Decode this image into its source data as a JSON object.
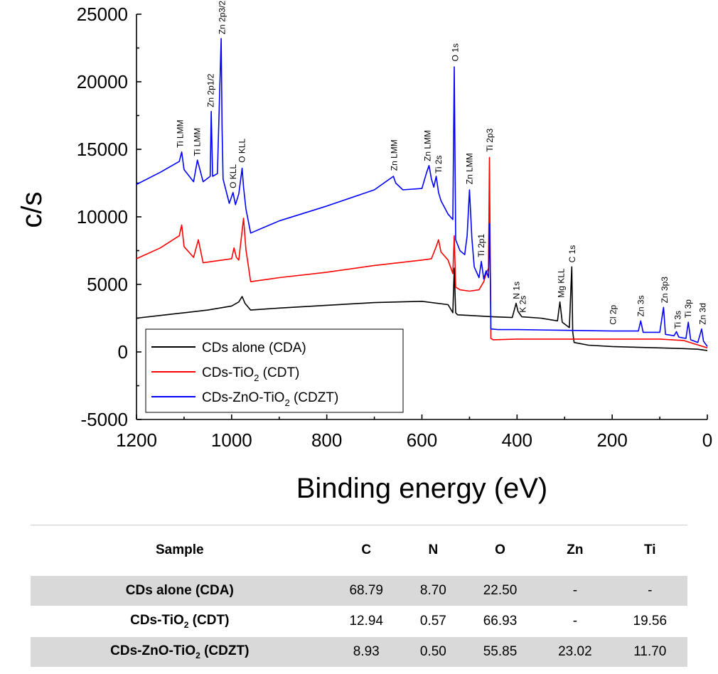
{
  "chart_data": {
    "type": "line",
    "title": "",
    "xlabel": "Binding energy (eV)",
    "ylabel": "c/s",
    "xlim": [
      1200,
      0
    ],
    "ylim": [
      -5000,
      25000
    ],
    "x_reversed": true,
    "grid": false,
    "legend_position": "bottom-left",
    "x_ticks": [
      "1200",
      "1000",
      "800",
      "600",
      "400",
      "200",
      "0"
    ],
    "y_ticks": [
      "-5000",
      "0",
      "5000",
      "10000",
      "15000",
      "20000",
      "25000"
    ],
    "series": [
      {
        "name": "CDs alone (CDA)",
        "legend_main": "CDs alone (CDA)",
        "legend_sub": "",
        "legend_tail": "",
        "color": "#000000",
        "x": [
          1200,
          1150,
          1100,
          1050,
          1000,
          985,
          978,
          972,
          960,
          900,
          800,
          700,
          600,
          545,
          535,
          532,
          529,
          525,
          500,
          450,
          410,
          402,
          398,
          390,
          350,
          315,
          310,
          305,
          290,
          285,
          283,
          280,
          250,
          200,
          150,
          100,
          50,
          20,
          0
        ],
        "y": [
          2500,
          2700,
          2900,
          3100,
          3400,
          3700,
          4100,
          3600,
          3100,
          3250,
          3450,
          3650,
          3750,
          3500,
          2900,
          6200,
          2900,
          2750,
          2700,
          2600,
          2550,
          3600,
          3000,
          2600,
          2500,
          2300,
          3700,
          2200,
          1800,
          6300,
          1500,
          700,
          500,
          400,
          350,
          300,
          250,
          200,
          100
        ]
      },
      {
        "name": "CDs-TiO2 (CDT)",
        "legend_main": "CDs-TiO",
        "legend_sub": "2",
        "legend_tail": " (CDT)",
        "color": "#ff0000",
        "x": [
          1200,
          1150,
          1110,
          1105,
          1100,
          1080,
          1070,
          1060,
          1000,
          995,
          990,
          985,
          975,
          970,
          960,
          900,
          800,
          700,
          600,
          580,
          570,
          565,
          560,
          545,
          535,
          532,
          529,
          520,
          500,
          480,
          470,
          465,
          460,
          458,
          456,
          455,
          450,
          400,
          300,
          200,
          100,
          50,
          0
        ],
        "y": [
          6900,
          7700,
          8600,
          9400,
          7800,
          7000,
          8300,
          6600,
          6900,
          7700,
          7000,
          6800,
          9900,
          7600,
          5200,
          5500,
          5900,
          6400,
          6800,
          6900,
          7800,
          8300,
          7400,
          6800,
          5800,
          8600,
          4800,
          4600,
          4500,
          4600,
          5200,
          5800,
          6200,
          14400,
          5000,
          1000,
          900,
          950,
          950,
          950,
          950,
          850,
          300
        ]
      },
      {
        "name": "CDs-ZnO-TiO2 (CDZT)",
        "legend_main": "CDs-ZnO-TiO",
        "legend_sub": "2",
        "legend_tail": " (CDZT)",
        "color": "#0000ff",
        "x": [
          1200,
          1150,
          1110,
          1105,
          1100,
          1080,
          1072,
          1060,
          1045,
          1043,
          1040,
          1030,
          1022,
          1020,
          1018,
          1005,
          997,
          992,
          985,
          978,
          975,
          970,
          960,
          900,
          800,
          700,
          660,
          655,
          640,
          600,
          590,
          585,
          580,
          575,
          570,
          565,
          560,
          545,
          535,
          532,
          529,
          520,
          510,
          505,
          500,
          495,
          490,
          480,
          475,
          470,
          465,
          460,
          458,
          456,
          455,
          440,
          400,
          300,
          200,
          145,
          140,
          135,
          100,
          92,
          88,
          70,
          65,
          60,
          45,
          40,
          35,
          20,
          12,
          8,
          0
        ],
        "y": [
          12400,
          13300,
          14100,
          14800,
          13500,
          12600,
          14200,
          12600,
          13000,
          17800,
          13000,
          13200,
          23200,
          16500,
          12800,
          11000,
          11800,
          10900,
          11700,
          13600,
          12200,
          10600,
          8800,
          9700,
          10800,
          12000,
          13000,
          12500,
          12000,
          12100,
          13300,
          13800,
          12800,
          12200,
          13000,
          11800,
          11200,
          10200,
          9800,
          21100,
          8300,
          7500,
          7200,
          8600,
          12000,
          8400,
          6300,
          5500,
          6700,
          5400,
          6000,
          5500,
          9500,
          5200,
          1700,
          1650,
          1650,
          1600,
          1550,
          1550,
          2300,
          1450,
          1450,
          3300,
          1300,
          1200,
          1500,
          1100,
          1000,
          2200,
          900,
          700,
          1700,
          800,
          400
        ]
      }
    ],
    "peak_labels": [
      {
        "text": "Ti LMM",
        "x": 1108,
        "y": 14900
      },
      {
        "text": "Ti LMM",
        "x": 1072,
        "y": 14300
      },
      {
        "text": "Zn 2p1/2",
        "x": 1044,
        "y": 17900
      },
      {
        "text": "Zn 2p3/2",
        "x": 1020,
        "y": 23300
      },
      {
        "text": "O KLL",
        "x": 997,
        "y": 11900
      },
      {
        "text": "O KLL",
        "x": 978,
        "y": 13800
      },
      {
        "text": "Zn LMM",
        "x": 658,
        "y": 13200
      },
      {
        "text": "Zn LMM",
        "x": 588,
        "y": 13900
      },
      {
        "text": "Ti 2s",
        "x": 565,
        "y": 13000
      },
      {
        "text": "O 1s",
        "x": 530,
        "y": 21300
      },
      {
        "text": "Zn LMM",
        "x": 500,
        "y": 12200
      },
      {
        "text": "Ti 2p3",
        "x": 457,
        "y": 14600
      },
      {
        "text": "Ti 2p1",
        "x": 475,
        "y": 6800
      },
      {
        "text": "N 1s",
        "x": 401,
        "y": 3700
      },
      {
        "text": "K 2s",
        "x": 388,
        "y": 2700
      },
      {
        "text": "Mg KLL",
        "x": 307,
        "y": 3800
      },
      {
        "text": "C 1s",
        "x": 284,
        "y": 6400
      },
      {
        "text": "Cl 2p",
        "x": 198,
        "y": 1800
      },
      {
        "text": "Zn 3s",
        "x": 140,
        "y": 2400
      },
      {
        "text": "Zn 3p3",
        "x": 90,
        "y": 3400
      },
      {
        "text": "Ti 3s",
        "x": 62,
        "y": 1500
      },
      {
        "text": "Ti 3p",
        "x": 40,
        "y": 2300
      },
      {
        "text": "Zn 3d",
        "x": 10,
        "y": 1800
      }
    ]
  },
  "table": {
    "headers": [
      "Sample",
      "C",
      "N",
      "O",
      "Zn",
      "Ti"
    ],
    "rows": [
      {
        "sample_main": "CDs alone (CDA)",
        "sample_sub": "",
        "sample_tail": "",
        "values": [
          "68.79",
          "8.70",
          "22.50",
          "-",
          "-"
        ],
        "shaded": true
      },
      {
        "sample_main": "CDs-TiO",
        "sample_sub": "2",
        "sample_tail": " (CDT)",
        "values": [
          "12.94",
          "0.57",
          "66.93",
          "-",
          "19.56"
        ],
        "shaded": false
      },
      {
        "sample_main": "CDs-ZnO-TiO",
        "sample_sub": "2",
        "sample_tail": " (CDZT)",
        "values": [
          "8.93",
          "0.50",
          "55.85",
          "23.02",
          "11.70"
        ],
        "shaded": true
      }
    ]
  }
}
